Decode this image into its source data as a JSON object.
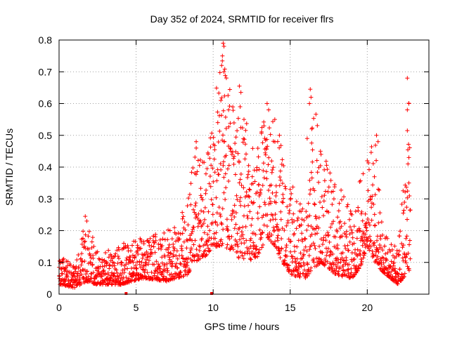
{
  "chart_data": {
    "type": "scatter",
    "title": "Day 352 of 2024, SRMTID for receiver flrs",
    "xlabel": "GPS time / hours",
    "ylabel": "SRMTID / TECUs",
    "xlim": [
      0,
      24
    ],
    "ylim": [
      0,
      0.8
    ],
    "x_ticks": [
      0,
      5,
      10,
      15,
      20
    ],
    "x_tick_labels": [
      "0",
      "5",
      "10",
      "15",
      "20"
    ],
    "y_ticks": [
      0,
      0.1,
      0.2,
      0.3,
      0.4,
      0.5,
      0.6,
      0.7,
      0.8
    ],
    "y_tick_labels": [
      "0",
      "0.1",
      "0.2",
      "0.3",
      "0.4",
      "0.5",
      "0.6",
      "0.7",
      "0.8"
    ],
    "grid": true,
    "marker": "plus",
    "series": [
      {
        "name": "SRMTID",
        "color": "#ff0000",
        "envelope": {
          "description": "approximate upper/lower bounds of the plus-marker cloud read from the figure",
          "x": [
            0.0,
            1.0,
            1.8,
            2.5,
            4.0,
            5.5,
            7.0,
            8.3,
            8.8,
            9.5,
            10.0,
            10.5,
            11.0,
            11.5,
            12.0,
            13.0,
            13.5,
            14.0,
            14.5,
            15.0,
            16.0,
            16.5,
            17.0,
            18.0,
            19.0,
            19.5,
            20.0,
            20.5,
            21.0,
            22.0,
            22.8
          ],
          "lower": [
            0.03,
            0.02,
            0.04,
            0.03,
            0.03,
            0.05,
            0.04,
            0.06,
            0.1,
            0.12,
            0.15,
            0.15,
            0.14,
            0.12,
            0.1,
            0.12,
            0.18,
            0.15,
            0.1,
            0.06,
            0.05,
            0.08,
            0.1,
            0.06,
            0.05,
            0.08,
            0.15,
            0.1,
            0.07,
            0.03,
            0.08
          ],
          "upper": [
            0.12,
            0.09,
            0.25,
            0.14,
            0.15,
            0.18,
            0.2,
            0.28,
            0.48,
            0.41,
            0.55,
            0.79,
            0.65,
            0.66,
            0.55,
            0.5,
            0.6,
            0.55,
            0.45,
            0.35,
            0.3,
            0.64,
            0.44,
            0.38,
            0.25,
            0.36,
            0.42,
            0.5,
            0.2,
            0.14,
            0.68
          ]
        },
        "notable_points": [
          {
            "x": 1.7,
            "y": 0.245
          },
          {
            "x": 1.8,
            "y": 0.23
          },
          {
            "x": 4.2,
            "y": 0.16
          },
          {
            "x": 7.2,
            "y": 0.2
          },
          {
            "x": 8.9,
            "y": 0.48
          },
          {
            "x": 8.9,
            "y": 0.46
          },
          {
            "x": 10.3,
            "y": 0.54
          },
          {
            "x": 10.65,
            "y": 0.79
          },
          {
            "x": 10.7,
            "y": 0.78
          },
          {
            "x": 10.6,
            "y": 0.75
          },
          {
            "x": 10.55,
            "y": 0.72
          },
          {
            "x": 10.7,
            "y": 0.7
          },
          {
            "x": 10.5,
            "y": 0.61
          },
          {
            "x": 11.0,
            "y": 0.58
          },
          {
            "x": 11.7,
            "y": 0.655
          },
          {
            "x": 11.8,
            "y": 0.635
          },
          {
            "x": 11.75,
            "y": 0.59
          },
          {
            "x": 12.0,
            "y": 0.55
          },
          {
            "x": 13.5,
            "y": 0.6
          },
          {
            "x": 13.6,
            "y": 0.58
          },
          {
            "x": 14.0,
            "y": 0.55
          },
          {
            "x": 14.3,
            "y": 0.5
          },
          {
            "x": 16.3,
            "y": 0.645
          },
          {
            "x": 16.35,
            "y": 0.62
          },
          {
            "x": 16.25,
            "y": 0.6
          },
          {
            "x": 16.4,
            "y": 0.52
          },
          {
            "x": 16.1,
            "y": 0.49
          },
          {
            "x": 17.0,
            "y": 0.44
          },
          {
            "x": 19.0,
            "y": 0.25
          },
          {
            "x": 20.0,
            "y": 0.42
          },
          {
            "x": 20.6,
            "y": 0.5
          },
          {
            "x": 20.7,
            "y": 0.48
          },
          {
            "x": 22.6,
            "y": 0.68
          },
          {
            "x": 22.7,
            "y": 0.6
          },
          {
            "x": 22.6,
            "y": 0.58
          },
          {
            "x": 22.6,
            "y": 0.515
          },
          {
            "x": 22.7,
            "y": 0.43
          },
          {
            "x": 22.7,
            "y": 0.35
          },
          {
            "x": 22.8,
            "y": 0.265
          }
        ],
        "near_zero_markers": [
          {
            "x": 4.35,
            "y": 0.0
          },
          {
            "x": 9.9,
            "y": 0.0
          }
        ]
      }
    ]
  }
}
